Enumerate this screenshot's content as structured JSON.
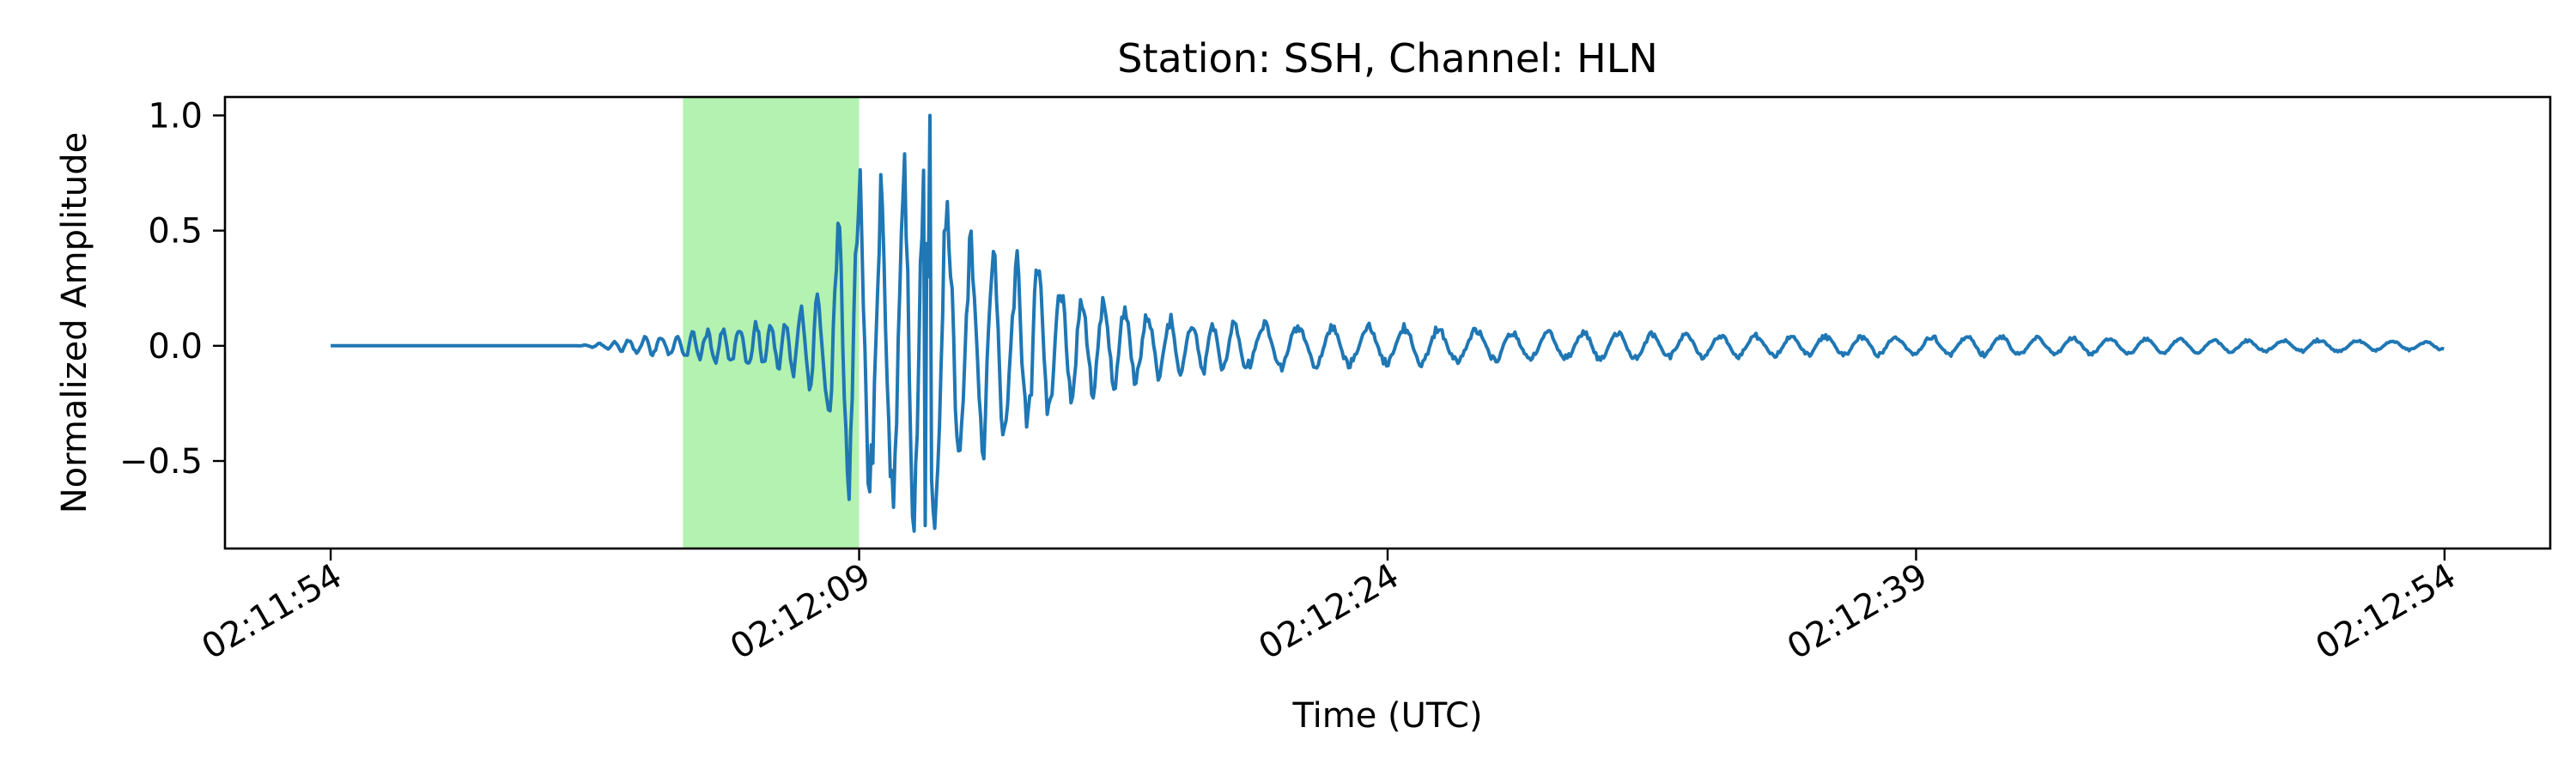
{
  "chart_data": {
    "type": "line",
    "title": "Station: SSH, Channel: HLN",
    "xlabel": "Time (UTC)",
    "ylabel": "Normalized Amplitude",
    "x_unit": "seconds",
    "xlim": [
      "02:11:51",
      "02:12:57"
    ],
    "ylim": [
      -0.88,
      1.08
    ],
    "x_ticks": [
      "02:11:54",
      "02:12:09",
      "02:12:24",
      "02:12:39",
      "02:12:54"
    ],
    "y_ticks": [
      "−0.5",
      "0.0",
      "0.5",
      "1.0"
    ],
    "y_tick_values": [
      -0.5,
      0.0,
      0.5,
      1.0
    ],
    "grid": false,
    "legend": "none",
    "highlight_span": {
      "from": "02:12:04",
      "to": "02:12:09",
      "color": "#b3f2b0"
    },
    "series": [
      {
        "color": "#1f77b4",
        "x": [
          "02:11:54",
          "02:11:55",
          "02:11:56",
          "02:11:57",
          "02:11:58",
          "02:11:59",
          "02:12:00",
          "02:12:01",
          "02:12:02",
          "02:12:03",
          "02:12:04",
          "02:12:05",
          "02:12:06",
          "02:12:07",
          "02:12:08",
          "02:12:08.5",
          "02:12:09",
          "02:12:09.5",
          "02:12:10",
          "02:12:10.5",
          "02:12:11",
          "02:12:11.5",
          "02:12:12",
          "02:12:12.5",
          "02:12:13",
          "02:12:14",
          "02:12:15",
          "02:12:16",
          "02:12:17",
          "02:12:18",
          "02:12:19",
          "02:12:20",
          "02:12:22",
          "02:12:24",
          "02:12:26",
          "02:12:28",
          "02:12:30",
          "02:12:33",
          "02:12:36",
          "02:12:39",
          "02:12:42",
          "02:12:45",
          "02:12:48",
          "02:12:51",
          "02:12:54"
        ],
        "amplitude_envelope": [
          0.0,
          0.0,
          0.0,
          0.0,
          0.0,
          0.0,
          0.0,
          0.0,
          0.02,
          0.05,
          0.06,
          0.09,
          0.12,
          0.13,
          0.3,
          0.8,
          0.8,
          0.85,
          0.85,
          0.95,
          1.0,
          0.75,
          0.65,
          0.55,
          0.45,
          0.45,
          0.3,
          0.22,
          0.18,
          0.14,
          0.13,
          0.12,
          0.1,
          0.1,
          0.09,
          0.07,
          0.07,
          0.06,
          0.05,
          0.05,
          0.05,
          0.04,
          0.03,
          0.03,
          0.02
        ],
        "peak": {
          "x": "02:12:11",
          "y": 1.0
        },
        "trough": {
          "x": "02:12:11",
          "y": -0.78
        }
      }
    ]
  }
}
